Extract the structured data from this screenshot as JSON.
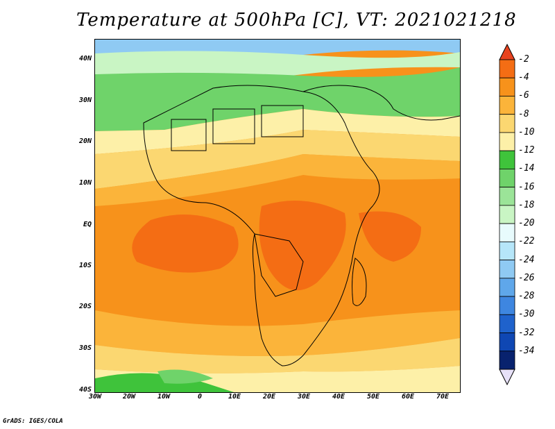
{
  "title": "Temperature at 500hPa [C], VT: 2021021218",
  "credit": "GrADS: IGES/COLA",
  "map": {
    "lat_labels": [
      "40N",
      "30N",
      "20N",
      "10N",
      "EQ",
      "10S",
      "20S",
      "30S",
      "40S"
    ],
    "lon_labels": [
      "30W",
      "20W",
      "10W",
      "0",
      "10E",
      "20E",
      "30E",
      "40E",
      "50E",
      "60E",
      "70E"
    ]
  },
  "colorbar": {
    "labels": [
      "-2",
      "-4",
      "-6",
      "-8",
      "-10",
      "-12",
      "-14",
      "-16",
      "-18",
      "-20",
      "-22",
      "-24",
      "-26",
      "-28",
      "-30",
      "-32",
      "-34"
    ],
    "colors": [
      "#e8431f",
      "#f46d14",
      "#f7921b",
      "#fbb43a",
      "#fbd771",
      "#fdf0a8",
      "#3fc33b",
      "#6fd36a",
      "#9be498",
      "#c9f5c4",
      "#e8fbfd",
      "#b6e6f9",
      "#8fcaf3",
      "#5fa7ea",
      "#3e86e0",
      "#1f62cc",
      "#0f47b3",
      "#08226e",
      "#e7e1f8"
    ]
  }
}
